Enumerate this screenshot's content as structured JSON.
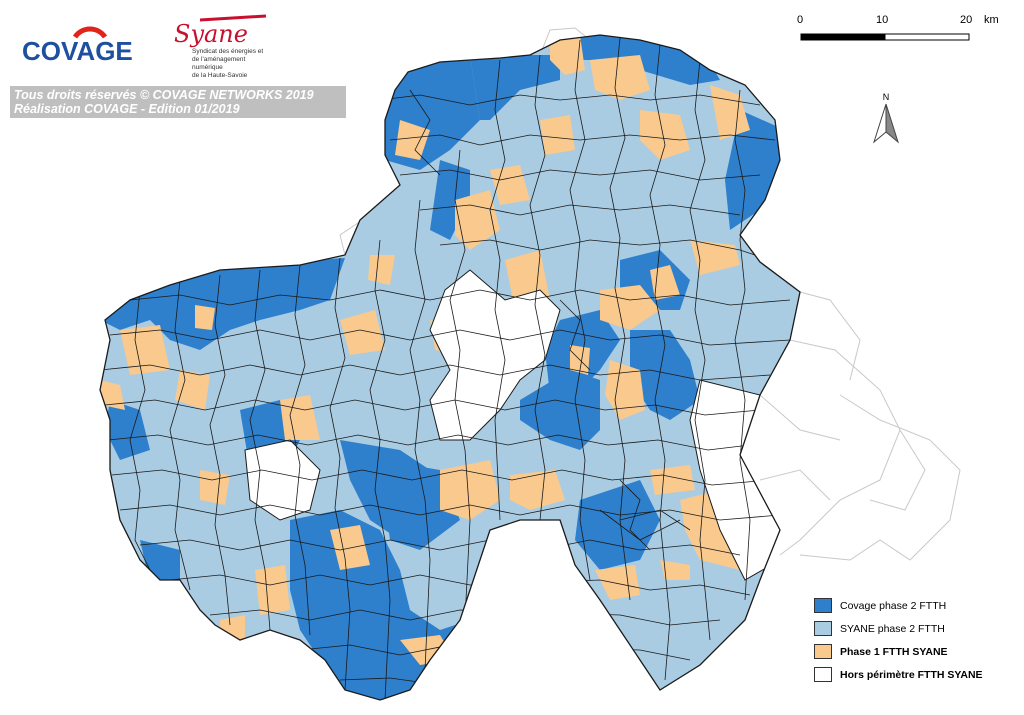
{
  "logos": {
    "covage": "COVAGE",
    "syane": "Syane",
    "syane_subtitle": [
      "Syndicat des énergies et",
      "de l'aménagement numérique",
      "de la Haute-Savoie"
    ]
  },
  "rights": {
    "line1": "Tous droits réservés © COVAGE NETWORKS 2019",
    "line2": "Réalisation COVAGE - Edition 01/2019"
  },
  "scale": {
    "ticks": [
      "0",
      "10",
      "20"
    ],
    "unit": "km"
  },
  "north_label": "N",
  "legend": [
    {
      "label": "Covage phase 2 FTTH",
      "color": "#2e7fcc",
      "bold": false
    },
    {
      "label": "SYANE phase 2 FTTH",
      "color": "#a9cce3",
      "bold": false
    },
    {
      "label": "Phase 1 FTTH SYANE",
      "color": "#f9c98d",
      "bold": true
    },
    {
      "label": "Hors périmètre FTTH SYANE",
      "color": "#ffffff",
      "bold": true
    }
  ],
  "colors": {
    "covage": "#2e7fcc",
    "syane": "#a9cce3",
    "phase1": "#f9c98d",
    "outside": "#ffffff",
    "border": "#1a1a1a",
    "outside_border": "#c8c8c8"
  }
}
